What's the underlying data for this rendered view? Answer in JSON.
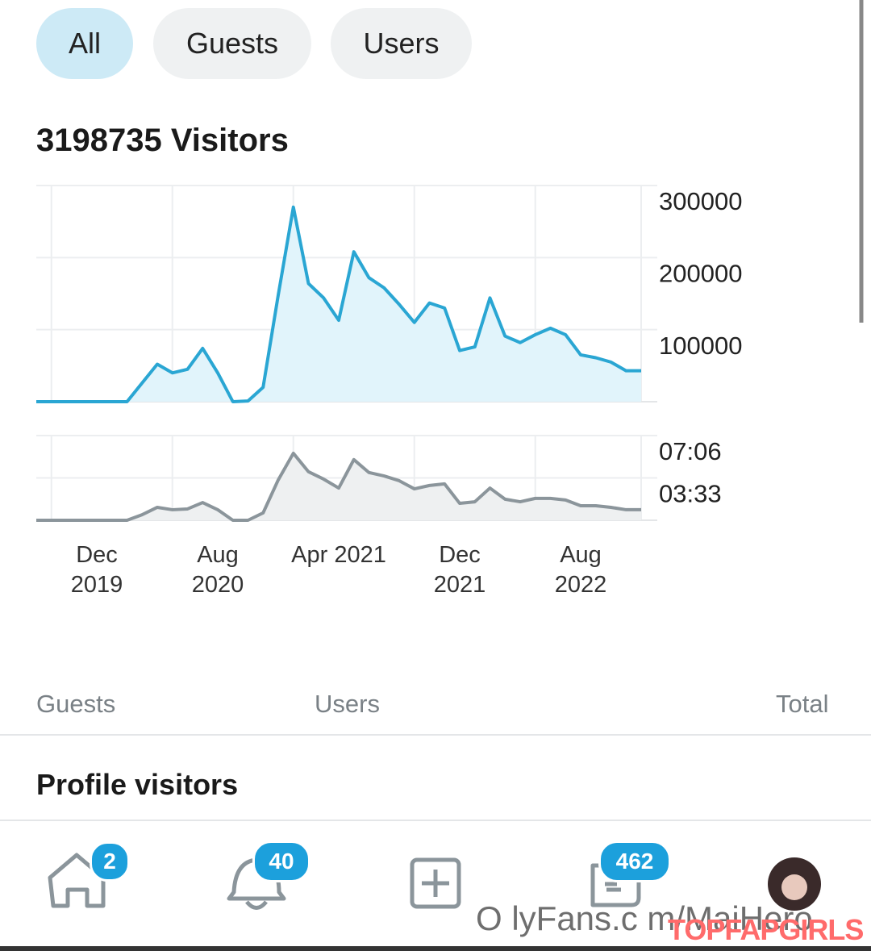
{
  "tabs": [
    "All",
    "Guests",
    "Users"
  ],
  "title": "3198735 Visitors",
  "chart_data": [
    {
      "type": "area",
      "color": "#2aa6d3",
      "fill": "#e1f4fb",
      "values": [
        0,
        0,
        0,
        0,
        0,
        0,
        0,
        26000,
        52000,
        40000,
        45000,
        74000,
        40000,
        0,
        1000,
        20000,
        148000,
        270000,
        164000,
        144000,
        113000,
        208000,
        172000,
        158000,
        135000,
        110000,
        137000,
        130000,
        71000,
        76000,
        144000,
        91000,
        82000,
        93000,
        102000,
        93000,
        65000,
        61000,
        55000,
        43000,
        43000
      ],
      "ylim": [
        0,
        300000
      ],
      "yticks": [
        100000,
        200000,
        300000
      ],
      "grid": true
    },
    {
      "type": "area",
      "color": "#8b959b",
      "fill": "#eef0f1",
      "categories": [
        null,
        null,
        null,
        null,
        "Dec 2019",
        null,
        null,
        null,
        null,
        null,
        null,
        null,
        "Aug 2020",
        null,
        null,
        null,
        null,
        null,
        null,
        null,
        "Apr 2021",
        null,
        null,
        null,
        null,
        null,
        null,
        null,
        "Dec 2021",
        null,
        null,
        null,
        null,
        null,
        null,
        null,
        "Aug 2022",
        null,
        null,
        null,
        null
      ],
      "values": [
        0,
        0,
        0,
        0,
        0,
        0,
        0,
        28,
        65,
        53,
        57,
        89,
        53,
        0,
        0,
        37,
        203,
        337,
        244,
        207,
        162,
        305,
        240,
        223,
        199,
        158,
        175,
        183,
        85,
        93,
        162,
        106,
        93,
        110,
        110,
        102,
        73,
        73,
        65,
        53,
        53
      ],
      "ylim": [
        0,
        426
      ],
      "yticks": [
        {
          "value": 426,
          "label": "07:06"
        },
        {
          "value": 213,
          "label": "03:33"
        }
      ],
      "grid": true
    }
  ],
  "legend": [
    "Guests",
    "Users",
    "Total"
  ],
  "section_title": "Profile visitors",
  "nav_badges": [
    "2",
    "40",
    "462"
  ],
  "watermark": "O lyFans.c m/MaiHero",
  "watermark_brand": "TOPFAPGIRLS"
}
